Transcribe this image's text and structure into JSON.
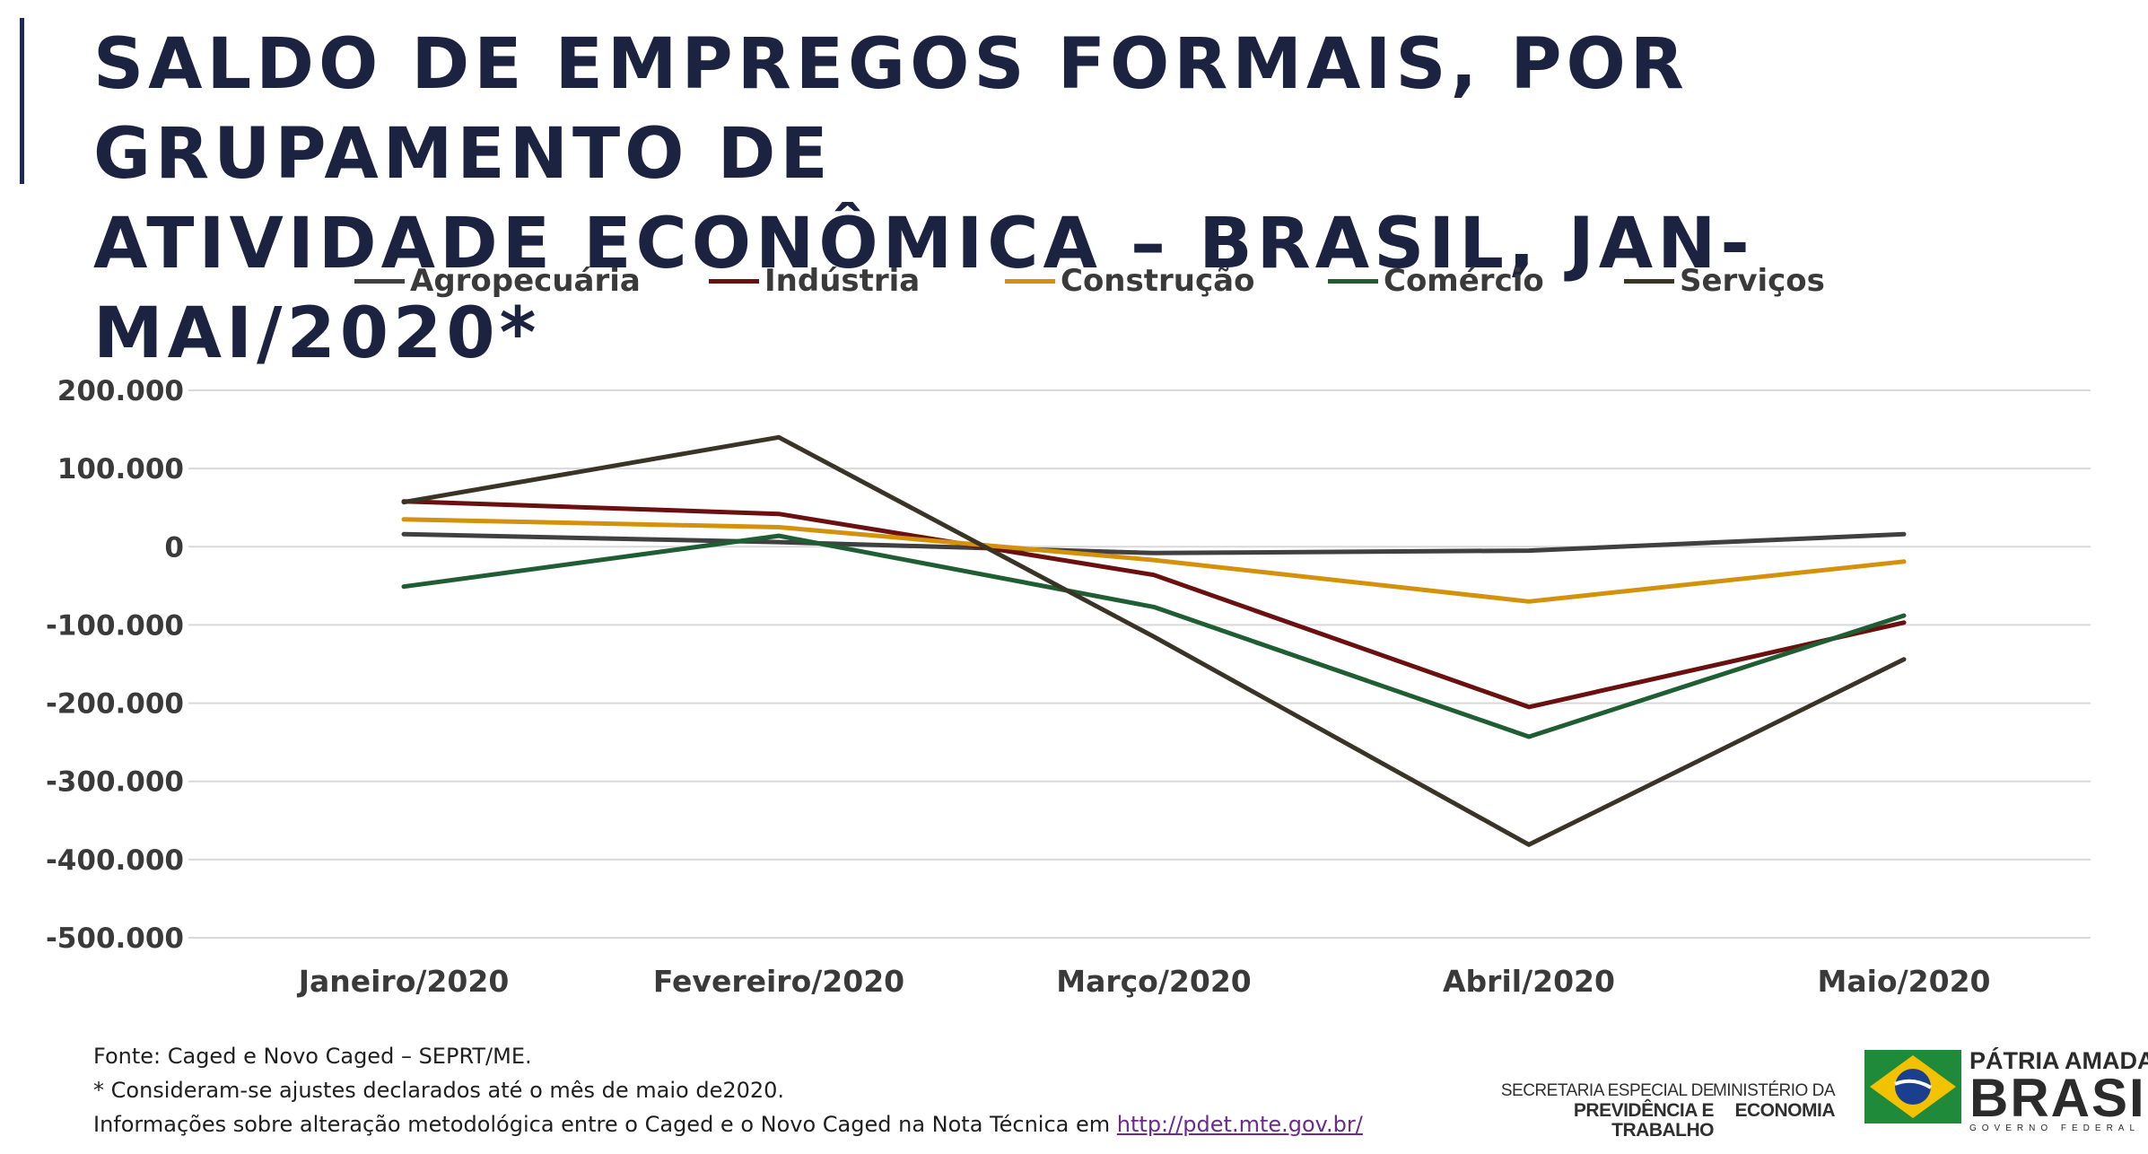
{
  "header": {
    "title_line1": "SALDO DE EMPREGOS FORMAIS, POR GRUPAMENTO DE",
    "title_line2": "ATIVIDADE ECONÔMICA – BRASIL, JAN-MAI/2020*"
  },
  "chart_data": {
    "type": "line",
    "categories": [
      "Janeiro/2020",
      "Fevereiro/2020",
      "Março/2020",
      "Abril/2020",
      "Maio/2020"
    ],
    "series": [
      {
        "name": "Agropecuária",
        "color": "#404040",
        "values": [
          16000,
          6000,
          -8000,
          -5000,
          16000
        ]
      },
      {
        "name": "Indústria",
        "color": "#6b1010",
        "values": [
          58000,
          42000,
          -36000,
          -205000,
          -97000
        ]
      },
      {
        "name": "Construção",
        "color": "#d4920c",
        "values": [
          35000,
          25000,
          -17000,
          -70000,
          -19000
        ]
      },
      {
        "name": "Comércio",
        "color": "#1e5e32",
        "values": [
          -51000,
          14000,
          -77000,
          -243000,
          -88000
        ]
      },
      {
        "name": "Serviços",
        "color": "#3a3426",
        "values": [
          57000,
          140000,
          -115000,
          -381000,
          -144000
        ]
      }
    ],
    "ylim": [
      -500000,
      200000
    ],
    "yticks": [
      200000,
      100000,
      0,
      -100000,
      -200000,
      -300000,
      -400000,
      -500000
    ],
    "ytick_labels": [
      "200.000",
      "100.000",
      "0",
      "-100.000",
      "-200.000",
      "-300.000",
      "-400.000",
      "-500.000"
    ],
    "grid": true,
    "legend_position": "top",
    "xlabel": "",
    "ylabel": ""
  },
  "footer": {
    "source": "Fonte: Caged e Novo Caged – SEPRT/ME.",
    "note": "* Consideram-se ajustes declarados até o mês de maio de2020.",
    "info_prefix": "Informações sobre alteração metodológica entre o Caged e o Novo Caged na Nota Técnica em ",
    "link_text": "http://pdet.mte.gov.br/"
  },
  "logos": {
    "secretaria_line1": "SECRETARIA ESPECIAL DE",
    "secretaria_line2": "PREVIDÊNCIA E TRABALHO",
    "ministerio_line1": "MINISTÉRIO DA",
    "ministerio_line2": "ECONOMIA",
    "brand_line1": "PÁTRIA AMADA",
    "brand_line2": "BRASIL",
    "brand_line3": "GOVERNO FEDERAL"
  }
}
